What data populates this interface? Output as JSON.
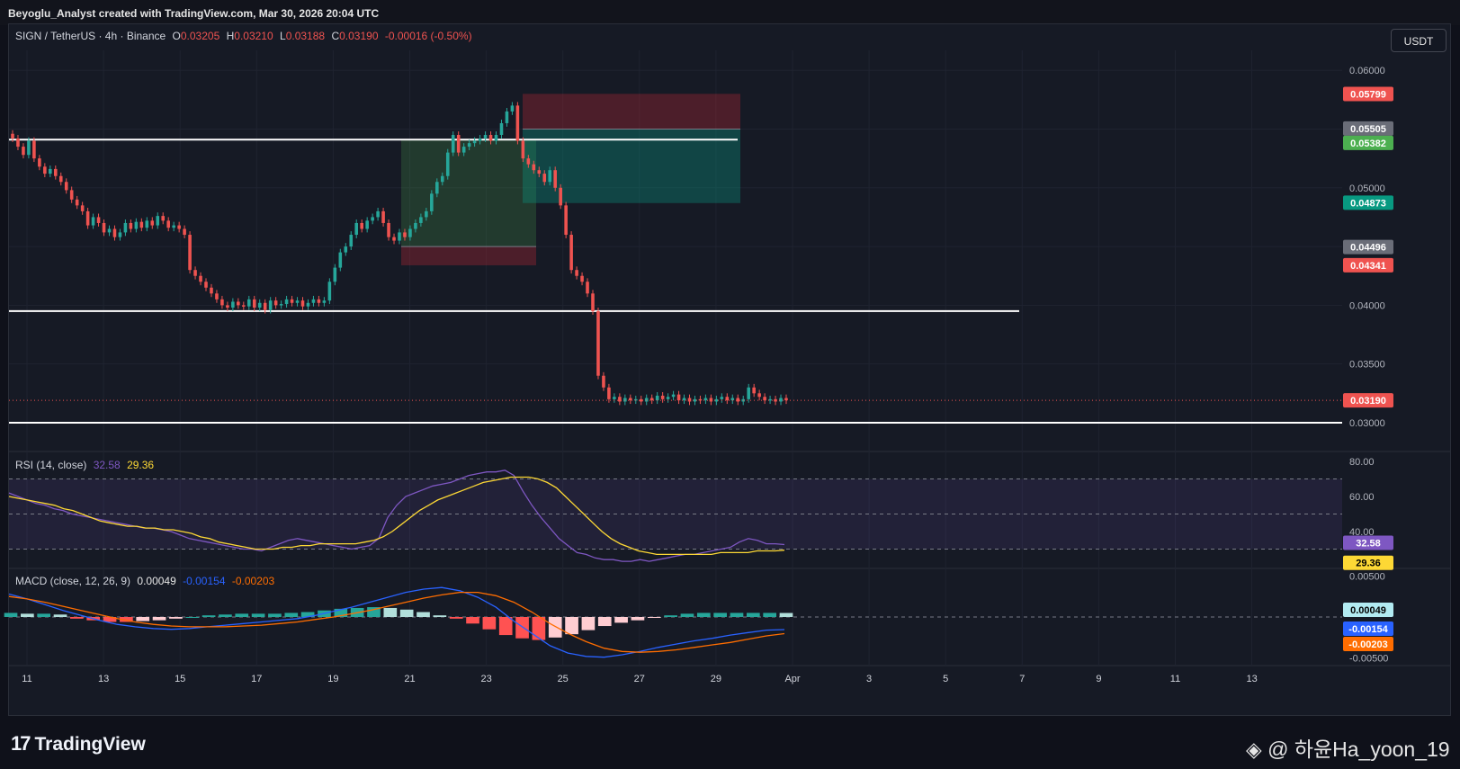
{
  "header": {
    "credit": "Beyoglu_Analyst created with TradingView.com, Mar 30, 2026 20:04 UTC"
  },
  "symbol": {
    "title": "SIGN / TetherUS · 4h · Binance",
    "o_label": "O",
    "o_value": "0.03205",
    "h_label": "H",
    "h_value": "0.03210",
    "l_label": "L",
    "l_value": "0.03188",
    "c_label": "C",
    "c_value": "0.03190",
    "change": "-0.00016 (-0.50%)"
  },
  "currency_button": "USDT",
  "rsi_legend": {
    "label": "RSI (14, close)",
    "rsi": "32.58",
    "ma": "29.36"
  },
  "macd_legend": {
    "label": "MACD (close, 12, 26, 9)",
    "hist": "0.00049",
    "macd": "-0.00154",
    "signal": "-0.00203"
  },
  "footer": {
    "brand": "TradingView",
    "watermark": "@ 하윤Ha_yoon_19"
  },
  "colors": {
    "up": "#26a69a",
    "down": "#ef5350",
    "rsi": "#7e57c2",
    "rsi_ma": "#fdd835",
    "macd": "#2962ff",
    "macd_signal": "#ff6d00",
    "bg": "#161a25"
  },
  "chart_data": [
    {
      "type": "candlestick",
      "title": "SIGN / TetherUS · 4h · Binance",
      "x_ticks": [
        "11",
        "13",
        "15",
        "17",
        "19",
        "21",
        "23",
        "25",
        "27",
        "29",
        "Apr",
        "3",
        "5",
        "7",
        "9",
        "11",
        "13"
      ],
      "ylim": [
        0.0277,
        0.0617
      ],
      "y_ticks": [
        "0.06000",
        "0.05500",
        "0.05000",
        "0.04500",
        "0.04000",
        "0.03500",
        "0.03000"
      ],
      "price_tags": [
        {
          "value": "0.05799",
          "color": "#ef5350"
        },
        {
          "value": "0.05505",
          "color": "#6a6d78"
        },
        {
          "value": "0.05382",
          "color": "#4caf50"
        },
        {
          "value": "0.04873",
          "color": "#089981"
        },
        {
          "value": "0.04496",
          "color": "#6a6d78"
        },
        {
          "value": "0.04341",
          "color": "#ef5350"
        },
        {
          "value": "0.03190",
          "color": "#ef5350"
        }
      ],
      "horizontal_lines": [
        0.0541,
        0.0395,
        0.03
      ],
      "last_price": 0.0319,
      "closes": [
        0.0542,
        0.0535,
        0.0528,
        0.054,
        0.0525,
        0.0518,
        0.0512,
        0.0516,
        0.051,
        0.0505,
        0.0498,
        0.049,
        0.0485,
        0.048,
        0.0468,
        0.0475,
        0.047,
        0.0462,
        0.0465,
        0.0458,
        0.0462,
        0.047,
        0.0465,
        0.0471,
        0.0466,
        0.0472,
        0.0468,
        0.0476,
        0.0472,
        0.0466,
        0.0468,
        0.0465,
        0.046,
        0.043,
        0.0425,
        0.042,
        0.0415,
        0.041,
        0.0405,
        0.04,
        0.0398,
        0.0403,
        0.04,
        0.0399,
        0.0405,
        0.0398,
        0.0402,
        0.0396,
        0.0404,
        0.04,
        0.0401,
        0.0405,
        0.0402,
        0.0404,
        0.0399,
        0.0402,
        0.0405,
        0.0402,
        0.0404,
        0.042,
        0.0432,
        0.0445,
        0.045,
        0.046,
        0.047,
        0.0465,
        0.0472,
        0.0475,
        0.048,
        0.047,
        0.0458,
        0.0455,
        0.0462,
        0.0458,
        0.0465,
        0.047,
        0.0475,
        0.048,
        0.0495,
        0.0505,
        0.051,
        0.053,
        0.0545,
        0.053,
        0.0535,
        0.0538,
        0.054,
        0.0542,
        0.0545,
        0.054,
        0.0545,
        0.0555,
        0.0565,
        0.057,
        0.054,
        0.0525,
        0.052,
        0.0515,
        0.0512,
        0.0505,
        0.0515,
        0.05,
        0.0485,
        0.046,
        0.043,
        0.0425,
        0.042,
        0.041,
        0.0395,
        0.034,
        0.033,
        0.032,
        0.0322,
        0.0318,
        0.0321,
        0.0319,
        0.032,
        0.0318,
        0.0321,
        0.0319,
        0.0323,
        0.032,
        0.0322,
        0.0324,
        0.0319,
        0.0321,
        0.0318,
        0.032,
        0.0319,
        0.0321,
        0.0318,
        0.032,
        0.0322,
        0.0319,
        0.0321,
        0.0318,
        0.032,
        0.033,
        0.0325,
        0.0322,
        0.0319,
        0.032,
        0.0318,
        0.0321,
        0.0319
      ],
      "positions": [
        {
          "from_x": 446,
          "to_x": 596,
          "entry": 0.045,
          "target": 0.0541,
          "stop": 0.0434
        },
        {
          "from_x": 581,
          "to_x": 823,
          "entry": 0.055,
          "target": 0.0487,
          "stop": 0.058
        }
      ]
    },
    {
      "type": "line",
      "title": "RSI (14, close)",
      "ylim": [
        20,
        80
      ],
      "y_ticks": [
        "80.00",
        "60.00",
        "40.00"
      ],
      "bands": {
        "upper": 70,
        "middle": 50,
        "lower": 30
      },
      "tags": [
        {
          "value": "32.58",
          "color": "#7e57c2"
        },
        {
          "value": "29.36",
          "color": "#fdd835"
        }
      ],
      "series": [
        {
          "values": [
            62,
            60,
            58,
            56,
            55,
            53,
            52,
            50,
            49,
            48,
            47,
            46,
            45,
            44,
            43,
            42,
            42,
            41,
            40,
            38,
            36,
            35,
            34,
            33,
            32,
            31,
            30,
            30,
            29,
            31,
            33,
            35,
            36,
            35,
            34,
            33,
            32,
            31,
            30,
            31,
            32,
            36,
            48,
            55,
            60,
            62,
            64,
            66,
            67,
            68,
            70,
            72,
            73,
            74,
            74,
            75,
            72,
            63,
            55,
            48,
            42,
            36,
            32,
            28,
            27,
            25,
            24,
            24,
            23,
            23,
            24,
            23,
            24,
            25,
            26,
            27,
            27,
            28,
            29,
            30,
            31,
            34,
            36,
            35,
            33,
            33,
            32.58
          ]
        },
        {
          "values": [
            60,
            59,
            58,
            57,
            56,
            55,
            53,
            52,
            50,
            48,
            46,
            45,
            44,
            43,
            43,
            42,
            42,
            41,
            41,
            40,
            39,
            37,
            36,
            34,
            33,
            32,
            31,
            30,
            30,
            30,
            31,
            31,
            32,
            32,
            33,
            33,
            33,
            33,
            33,
            34,
            35,
            37,
            40,
            44,
            48,
            52,
            55,
            58,
            60,
            62,
            64,
            66,
            68,
            69,
            70,
            71,
            71,
            71,
            70,
            68,
            65,
            60,
            55,
            50,
            45,
            40,
            36,
            33,
            31,
            29,
            28,
            27,
            27,
            27,
            27,
            27,
            27,
            27,
            28,
            28,
            28,
            28,
            29,
            29,
            29,
            29.36
          ]
        }
      ]
    },
    {
      "type": "bar",
      "title": "MACD (close, 12, 26, 9)",
      "ylim": [
        -0.0057,
        0.0057
      ],
      "y_ticks": [
        "0.00500",
        "-0.00500"
      ],
      "tags": [
        {
          "value": "0.00049",
          "color": "#b2ebf2"
        },
        {
          "value": "-0.00154",
          "color": "#2962ff"
        },
        {
          "value": "-0.00203",
          "color": "#ff6d00"
        }
      ],
      "series": [
        {
          "values": [
            0.0028,
            0.0022,
            0.0015,
            0.0008,
            0.0002,
            -0.0004,
            -0.0009,
            -0.0012,
            -0.0014,
            -0.0015,
            -0.0014,
            -0.0012,
            -0.001,
            -0.0008,
            -0.0006,
            -0.0004,
            -0.0002,
            0.0002,
            0.0007,
            0.0012,
            0.0018,
            0.0024,
            0.003,
            0.0034,
            0.0036,
            0.0032,
            0.0024,
            0.0012,
            -0.0005,
            -0.002,
            -0.0035,
            -0.0044,
            -0.0048,
            -0.0049,
            -0.0046,
            -0.0042,
            -0.0037,
            -0.0033,
            -0.0029,
            -0.0026,
            -0.0022,
            -0.0019,
            -0.0016,
            -0.00154
          ]
        },
        {
          "values": [
            0.0025,
            0.0022,
            0.0018,
            0.0013,
            0.0008,
            0.0003,
            -0.0002,
            -0.0006,
            -0.0009,
            -0.0011,
            -0.0012,
            -0.0012,
            -0.0012,
            -0.0011,
            -0.001,
            -0.0008,
            -0.0006,
            -0.0003,
            0.0,
            0.0004,
            0.0008,
            0.0013,
            0.0018,
            0.0023,
            0.0027,
            0.003,
            0.003,
            0.0026,
            0.0018,
            0.0006,
            -0.0008,
            -0.002,
            -0.003,
            -0.0038,
            -0.0042,
            -0.0043,
            -0.0042,
            -0.004,
            -0.0037,
            -0.0034,
            -0.0031,
            -0.0027,
            -0.0023,
            -0.00203
          ]
        },
        {
          "values": [
            0.0005,
            0.0004,
            0.0004,
            0.0003,
            -0.0002,
            -0.0004,
            -0.0006,
            -0.0006,
            -0.0005,
            -0.0004,
            -0.0002,
            0.0,
            0.0002,
            0.0003,
            0.0004,
            0.0004,
            0.0004,
            0.0005,
            0.0006,
            0.0008,
            0.001,
            0.0011,
            0.0012,
            0.0011,
            0.0009,
            0.0006,
            0.0002,
            -0.0002,
            -0.0008,
            -0.0015,
            -0.0022,
            -0.0026,
            -0.0028,
            -0.0025,
            -0.0021,
            -0.0016,
            -0.0011,
            -0.0007,
            -0.0004,
            -0.0001,
            0.0002,
            0.0004,
            0.0005,
            0.0005,
            0.0005,
            0.0005,
            0.0005,
            0.00049
          ]
        }
      ]
    }
  ]
}
